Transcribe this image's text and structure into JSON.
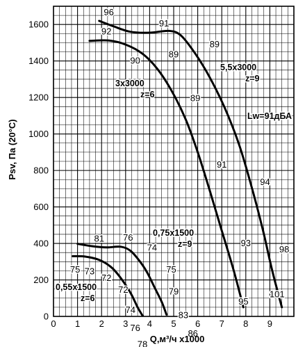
{
  "chart_data": {
    "type": "line",
    "xlabel": "Q,м³/ч x1000",
    "ylabel": "Psv, Па (20°C)",
    "xlim": [
      0,
      10
    ],
    "ylim": [
      0,
      1700
    ],
    "xticks": [
      0,
      1,
      2,
      3,
      4,
      5,
      6,
      7,
      8,
      9
    ],
    "yticks": [
      0,
      200,
      400,
      600,
      800,
      1000,
      1200,
      1400,
      1600
    ],
    "grid": true,
    "sound_power_label": "Lw=91дБА",
    "series": [
      {
        "name": "5,5x3000 z=9",
        "label_lines": [
          "5,5x3000",
          "z=9"
        ],
        "points": [
          [
            1.9,
            1620
          ],
          [
            2.5,
            1590
          ],
          [
            3.2,
            1560
          ],
          [
            4.0,
            1555
          ],
          [
            4.8,
            1565
          ],
          [
            5.3,
            1540
          ],
          [
            5.9,
            1440
          ],
          [
            6.5,
            1310
          ],
          [
            7.1,
            1150
          ],
          [
            7.7,
            950
          ],
          [
            8.2,
            730
          ],
          [
            8.7,
            480
          ],
          [
            9.1,
            250
          ],
          [
            9.5,
            50
          ]
        ],
        "sound_levels": [
          {
            "x": 2.3,
            "y": 1650,
            "text": "96"
          },
          {
            "x": 4.6,
            "y": 1590,
            "text": "91"
          },
          {
            "x": 6.7,
            "y": 1475,
            "text": "89"
          },
          {
            "x": 8.8,
            "y": 720,
            "text": "94"
          },
          {
            "x": 9.6,
            "y": 350,
            "text": "98"
          },
          {
            "x": 9.3,
            "y": 105,
            "text": "101"
          }
        ]
      },
      {
        "name": "3x3000 z=6",
        "label_lines": [
          "3x3000",
          "z=6"
        ],
        "points": [
          [
            1.5,
            1510
          ],
          [
            2.3,
            1512
          ],
          [
            3.0,
            1490
          ],
          [
            3.7,
            1440
          ],
          [
            4.3,
            1360
          ],
          [
            4.9,
            1240
          ],
          [
            5.5,
            1080
          ],
          [
            6.0,
            900
          ],
          [
            6.5,
            690
          ],
          [
            7.0,
            470
          ],
          [
            7.5,
            250
          ],
          [
            7.9,
            50
          ]
        ],
        "sound_levels": [
          {
            "x": 2.2,
            "y": 1545,
            "text": "92"
          },
          {
            "x": 3.4,
            "y": 1385,
            "text": "90"
          },
          {
            "x": 5.0,
            "y": 1420,
            "text": "89"
          },
          {
            "x": 5.9,
            "y": 1180,
            "text": "89"
          },
          {
            "x": 7.0,
            "y": 815,
            "text": "91"
          },
          {
            "x": 8.0,
            "y": 385,
            "text": "93"
          },
          {
            "x": 7.9,
            "y": 65,
            "text": "95"
          }
        ]
      },
      {
        "name": "0,75x1500 z=9",
        "label_lines": [
          "0,75x1500",
          "z=9"
        ],
        "points": [
          [
            1.0,
            398
          ],
          [
            1.6,
            385
          ],
          [
            2.2,
            378
          ],
          [
            2.8,
            382
          ],
          [
            3.2,
            360
          ],
          [
            3.6,
            300
          ],
          [
            3.9,
            240
          ],
          [
            4.2,
            160
          ],
          [
            4.5,
            80
          ],
          [
            4.7,
            10
          ]
        ],
        "sound_levels": [
          {
            "x": 1.9,
            "y": 410,
            "text": "81"
          },
          {
            "x": 3.1,
            "y": 415,
            "text": "76"
          },
          {
            "x": 4.1,
            "y": 360,
            "text": "74"
          },
          {
            "x": 4.9,
            "y": 240,
            "text": "75"
          },
          {
            "x": 5.0,
            "y": 120,
            "text": "79"
          },
          {
            "x": 5.4,
            "y": -10,
            "text": "83"
          },
          {
            "x": 5.8,
            "y": -110,
            "text": "86"
          }
        ]
      },
      {
        "name": "0,55x1500 z=6",
        "label_lines": [
          "0,55x1500",
          "z=6"
        ],
        "points": [
          [
            0.8,
            330
          ],
          [
            1.3,
            328
          ],
          [
            1.9,
            310
          ],
          [
            2.4,
            270
          ],
          [
            2.8,
            210
          ],
          [
            3.2,
            130
          ],
          [
            3.5,
            50
          ],
          [
            3.7,
            5
          ]
        ],
        "sound_levels": [
          {
            "x": 0.9,
            "y": 240,
            "text": "75"
          },
          {
            "x": 1.5,
            "y": 230,
            "text": "73"
          },
          {
            "x": 2.2,
            "y": 195,
            "text": "72"
          },
          {
            "x": 2.9,
            "y": 130,
            "text": "72"
          },
          {
            "x": 3.2,
            "y": 20,
            "text": "74"
          },
          {
            "x": 3.4,
            "y": -80,
            "text": "76"
          },
          {
            "x": 3.7,
            "y": -170,
            "text": "78"
          }
        ]
      }
    ]
  }
}
